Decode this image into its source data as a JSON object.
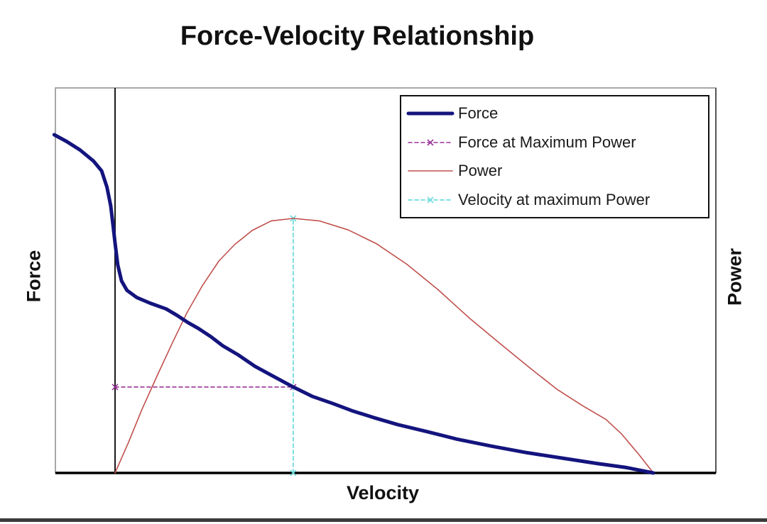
{
  "chart_data": {
    "type": "line",
    "title": "Force-Velocity Relationship",
    "xlabel": "Velocity",
    "ylabel_left": "Force",
    "ylabel_right": "Power",
    "axes": {
      "tick_labels": "none shown",
      "units": "normalized: vmax = 1, isometric force = 1, peak power = 1",
      "x_range_shown": [
        -0.125,
        1.115
      ],
      "grid": false,
      "zero_velocity_reference_line_x": 0
    },
    "legend_position": "top-right-inside",
    "annotations": {
      "velocity_at_max_power": 0.33,
      "force_at_max_power": 0.25
    },
    "colors": {
      "force": "#14147e",
      "force_at_max_power": "#993399",
      "power": "#c0504d",
      "velocity_at_max_power": "#6fdbdb",
      "plot_border": "#8c8c8c",
      "plot_border_right": "#555555",
      "axis_line": "#000000",
      "zero_line": "#1a1a1a",
      "title_text": "#111111",
      "bottom_bar": "#3b3b3b"
    },
    "series": [
      {
        "name": "Force",
        "axis": "force",
        "style": "solid",
        "width": 5,
        "color": "#14147e",
        "points": [
          [
            -0.113,
            1.0
          ],
          [
            -0.09,
            0.98
          ],
          [
            -0.065,
            0.955
          ],
          [
            -0.04,
            0.922
          ],
          [
            -0.025,
            0.893
          ],
          [
            -0.015,
            0.845
          ],
          [
            -0.008,
            0.79
          ],
          [
            -0.004,
            0.735
          ],
          [
            0.0,
            0.68
          ],
          [
            0.005,
            0.615
          ],
          [
            0.012,
            0.568
          ],
          [
            0.022,
            0.54
          ],
          [
            0.04,
            0.519
          ],
          [
            0.065,
            0.502
          ],
          [
            0.095,
            0.485
          ],
          [
            0.115,
            0.466
          ],
          [
            0.135,
            0.445
          ],
          [
            0.155,
            0.427
          ],
          [
            0.178,
            0.403
          ],
          [
            0.2,
            0.376
          ],
          [
            0.228,
            0.35
          ],
          [
            0.26,
            0.315
          ],
          [
            0.295,
            0.285
          ],
          [
            0.331,
            0.254
          ],
          [
            0.367,
            0.226
          ],
          [
            0.405,
            0.205
          ],
          [
            0.44,
            0.184
          ],
          [
            0.48,
            0.164
          ],
          [
            0.525,
            0.143
          ],
          [
            0.58,
            0.122
          ],
          [
            0.635,
            0.1
          ],
          [
            0.7,
            0.079
          ],
          [
            0.765,
            0.06
          ],
          [
            0.83,
            0.044
          ],
          [
            0.895,
            0.028
          ],
          [
            0.95,
            0.016
          ],
          [
            1.0,
            0.0
          ]
        ]
      },
      {
        "name": "Force at Maximum Power",
        "axis": "force",
        "style": "dashed",
        "width": 1.6,
        "marker": "x",
        "color": "#993399",
        "points": [
          [
            0.0,
            0.254
          ],
          [
            0.331,
            0.254
          ]
        ]
      },
      {
        "name": "Power",
        "axis": "power",
        "style": "solid",
        "width": 1.6,
        "color": "#c0504d",
        "points": [
          [
            0.0,
            0.0
          ],
          [
            0.025,
            0.12
          ],
          [
            0.05,
            0.25
          ],
          [
            0.08,
            0.39
          ],
          [
            0.107,
            0.513
          ],
          [
            0.133,
            0.627
          ],
          [
            0.162,
            0.735
          ],
          [
            0.193,
            0.833
          ],
          [
            0.222,
            0.897
          ],
          [
            0.255,
            0.953
          ],
          [
            0.29,
            0.99
          ],
          [
            0.331,
            1.0
          ],
          [
            0.38,
            0.99
          ],
          [
            0.433,
            0.955
          ],
          [
            0.486,
            0.9
          ],
          [
            0.542,
            0.82
          ],
          [
            0.6,
            0.72
          ],
          [
            0.66,
            0.605
          ],
          [
            0.716,
            0.507
          ],
          [
            0.772,
            0.41
          ],
          [
            0.822,
            0.327
          ],
          [
            0.868,
            0.265
          ],
          [
            0.912,
            0.21
          ],
          [
            0.941,
            0.153
          ],
          [
            0.974,
            0.07
          ],
          [
            1.0,
            0.0
          ]
        ]
      },
      {
        "name": "Velocity at maximum Power",
        "axis": "power",
        "style": "dashed",
        "width": 1.8,
        "marker": "x",
        "color": "#6fdbdb",
        "points": [
          [
            0.331,
            0.0
          ],
          [
            0.331,
            1.0
          ]
        ]
      }
    ]
  }
}
